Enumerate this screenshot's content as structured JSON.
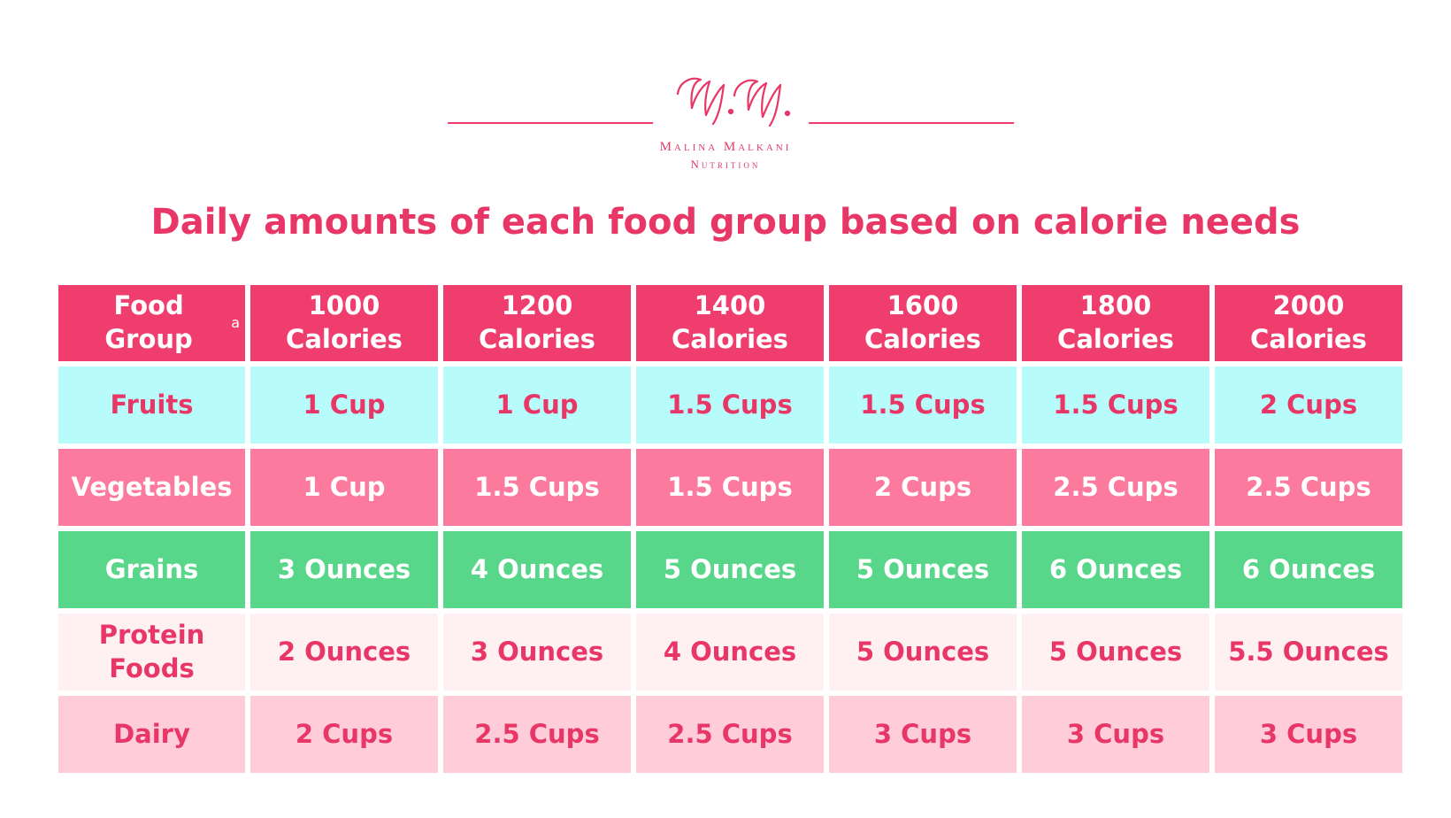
{
  "brand": {
    "monogram": "M.M.",
    "name": "Malina Malkani",
    "subtitle": "Nutrition",
    "accent_color": "#e83766"
  },
  "chart_data": {
    "type": "table",
    "title": "Daily amounts of each food group based on calorie needs",
    "header": {
      "food_group_label": "Food Group",
      "footnote_marker": "a",
      "columns": [
        {
          "line1": "1000",
          "line2": "Calories"
        },
        {
          "line1": "1200",
          "line2": "Calories"
        },
        {
          "line1": "1400",
          "line2": "Calories"
        },
        {
          "line1": "1600",
          "line2": "Calories"
        },
        {
          "line1": "1800",
          "line2": "Calories"
        },
        {
          "line1": "2000",
          "line2": "Calories"
        }
      ]
    },
    "rows": [
      {
        "label": "Fruits",
        "values": [
          "1 Cup",
          "1 Cup",
          "1.5 Cups",
          "1.5 Cups",
          "1.5 Cups",
          "2 Cups"
        ]
      },
      {
        "label": "Vegetables",
        "values": [
          "1 Cup",
          "1.5 Cups",
          "1.5 Cups",
          "2 Cups",
          "2.5 Cups",
          "2.5 Cups"
        ]
      },
      {
        "label": "Grains",
        "values": [
          "3 Ounces",
          "4 Ounces",
          "5 Ounces",
          "5 Ounces",
          "6 Ounces",
          "6 Ounces"
        ]
      },
      {
        "label": "Protein Foods",
        "values": [
          "2 Ounces",
          "3 Ounces",
          "4 Ounces",
          "5 Ounces",
          "5 Ounces",
          "5.5 Ounces"
        ]
      },
      {
        "label": "Dairy",
        "values": [
          "2 Cups",
          "2.5 Cups",
          "2.5 Cups",
          "3 Cups",
          "3 Cups",
          "3 Cups"
        ]
      }
    ],
    "colors": {
      "header": "#ef3d6e",
      "fruits": "#b8fbfb",
      "vegetables": "#fd7a9f",
      "grains": "#58d689",
      "protein_foods": "#fff0f2",
      "dairy": "#fecdd9"
    }
  }
}
